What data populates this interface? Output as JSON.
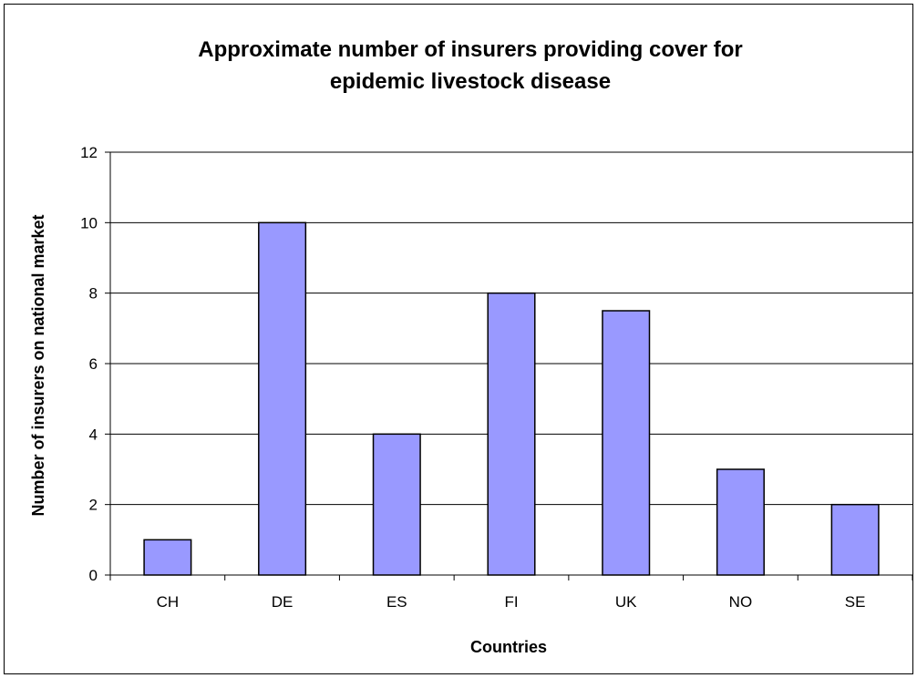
{
  "chart_data": {
    "type": "bar",
    "title_lines": [
      "Approximate number of insurers providing cover for",
      "epidemic livestock disease"
    ],
    "xlabel": "Countries",
    "ylabel": "Number of insurers on national market",
    "categories": [
      "CH",
      "DE",
      "ES",
      "FI",
      "UK",
      "NO",
      "SE"
    ],
    "values": [
      1,
      10,
      4,
      8,
      7.5,
      3,
      2
    ],
    "ylim": [
      0,
      12
    ],
    "yticks": [
      0,
      2,
      4,
      6,
      8,
      10,
      12
    ],
    "grid": true,
    "legend": "none",
    "colors": {
      "bar": "#9999ff",
      "bar_edge": "#000000",
      "grid": "#000000",
      "axis": "#000000"
    }
  }
}
